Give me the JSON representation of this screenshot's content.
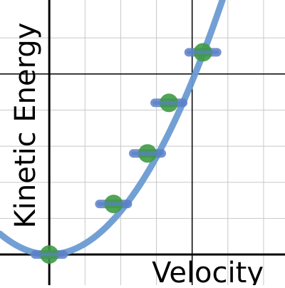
{
  "chart_data": {
    "type": "scatter",
    "title": "",
    "xlabel": "Velocity",
    "ylabel": "Kinetic Energy",
    "xlim": [
      -1.38,
      6.6
    ],
    "ylim": [
      -0.85,
      7.05
    ],
    "x_gridlines": [
      0,
      1,
      2,
      3,
      4,
      5,
      6
    ],
    "y_gridlines": [
      0,
      1,
      2,
      3,
      4,
      5,
      6
    ],
    "x_major_axes": [
      0,
      4
    ],
    "y_major_axes": [
      0,
      5
    ],
    "grid": true,
    "legend": "none",
    "series": [
      {
        "kind": "points",
        "x": [
          0,
          1.8,
          2.75,
          3.35,
          4.3
        ],
        "y": [
          0,
          1.4,
          2.8,
          4.2,
          5.6
        ]
      },
      {
        "kind": "curve",
        "a": 0.3,
        "x": [
          -1.38,
          0,
          1,
          2,
          3,
          4,
          4.6
        ],
        "y": [
          0.57,
          0,
          0.3,
          1.2,
          2.7,
          4.8,
          6.35
        ]
      }
    ],
    "colors": {
      "curve": "#6b9bd2",
      "point": "#3f9a45",
      "error_bar": "#5b80c8",
      "gridline": "#c8c8c8",
      "axis": "#000000"
    }
  }
}
